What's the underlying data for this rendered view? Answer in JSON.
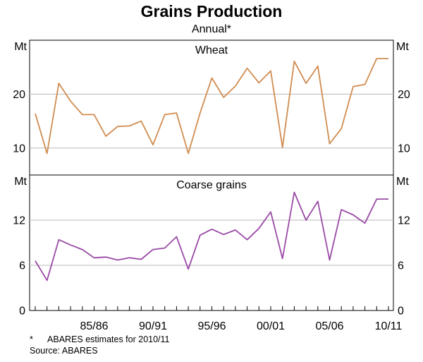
{
  "chart_data": {
    "type": "line",
    "title": "Grains Production",
    "subtitle": "Annual*",
    "x_tick_labels": [
      "85/86",
      "90/91",
      "95/96",
      "00/01",
      "05/06",
      "10/11"
    ],
    "x": [
      "80/81",
      "81/82",
      "82/83",
      "83/84",
      "84/85",
      "85/86",
      "86/87",
      "87/88",
      "88/89",
      "89/90",
      "90/91",
      "91/92",
      "92/93",
      "93/94",
      "94/95",
      "95/96",
      "96/97",
      "97/98",
      "98/99",
      "99/00",
      "00/01",
      "01/02",
      "02/03",
      "03/04",
      "04/05",
      "05/06",
      "06/07",
      "07/08",
      "08/09",
      "09/10",
      "10/11"
    ],
    "panels": [
      {
        "title": "Wheat",
        "unit": "Mt",
        "ylim": [
          5,
          30
        ],
        "yticks": [
          10,
          20
        ],
        "series": [
          {
            "color": "#d08c50",
            "values": [
              16.4,
              9.0,
              22.0,
              18.7,
              16.2,
              16.2,
              12.2,
              14.0,
              14.1,
              15.0,
              10.6,
              16.2,
              16.5,
              9.0,
              16.5,
              23.0,
              19.4,
              21.5,
              24.8,
              22.1,
              24.3,
              10.1,
              26.1,
              22.0,
              25.2,
              10.8,
              13.6,
              21.4,
              21.8,
              26.6,
              26.6
            ]
          }
        ]
      },
      {
        "title": "Coarse grains",
        "unit": "Mt",
        "ylim": [
          0,
          18
        ],
        "yticks": [
          0,
          6,
          12
        ],
        "series": [
          {
            "color": "#9a4aa6",
            "values": [
              6.6,
              4.0,
              9.4,
              8.7,
              8.1,
              7.0,
              7.1,
              6.7,
              7.0,
              6.8,
              8.1,
              8.3,
              9.8,
              5.5,
              10.0,
              10.8,
              10.1,
              10.7,
              9.4,
              10.9,
              13.1,
              6.9,
              15.7,
              12.0,
              14.5,
              6.7,
              13.4,
              12.7,
              11.6,
              14.8,
              14.8
            ]
          }
        ]
      }
    ]
  },
  "notes": {
    "footnote_marker": "*",
    "footnote_text": "ABARES estimates for 2010/11",
    "source": "Source: ABARES"
  }
}
